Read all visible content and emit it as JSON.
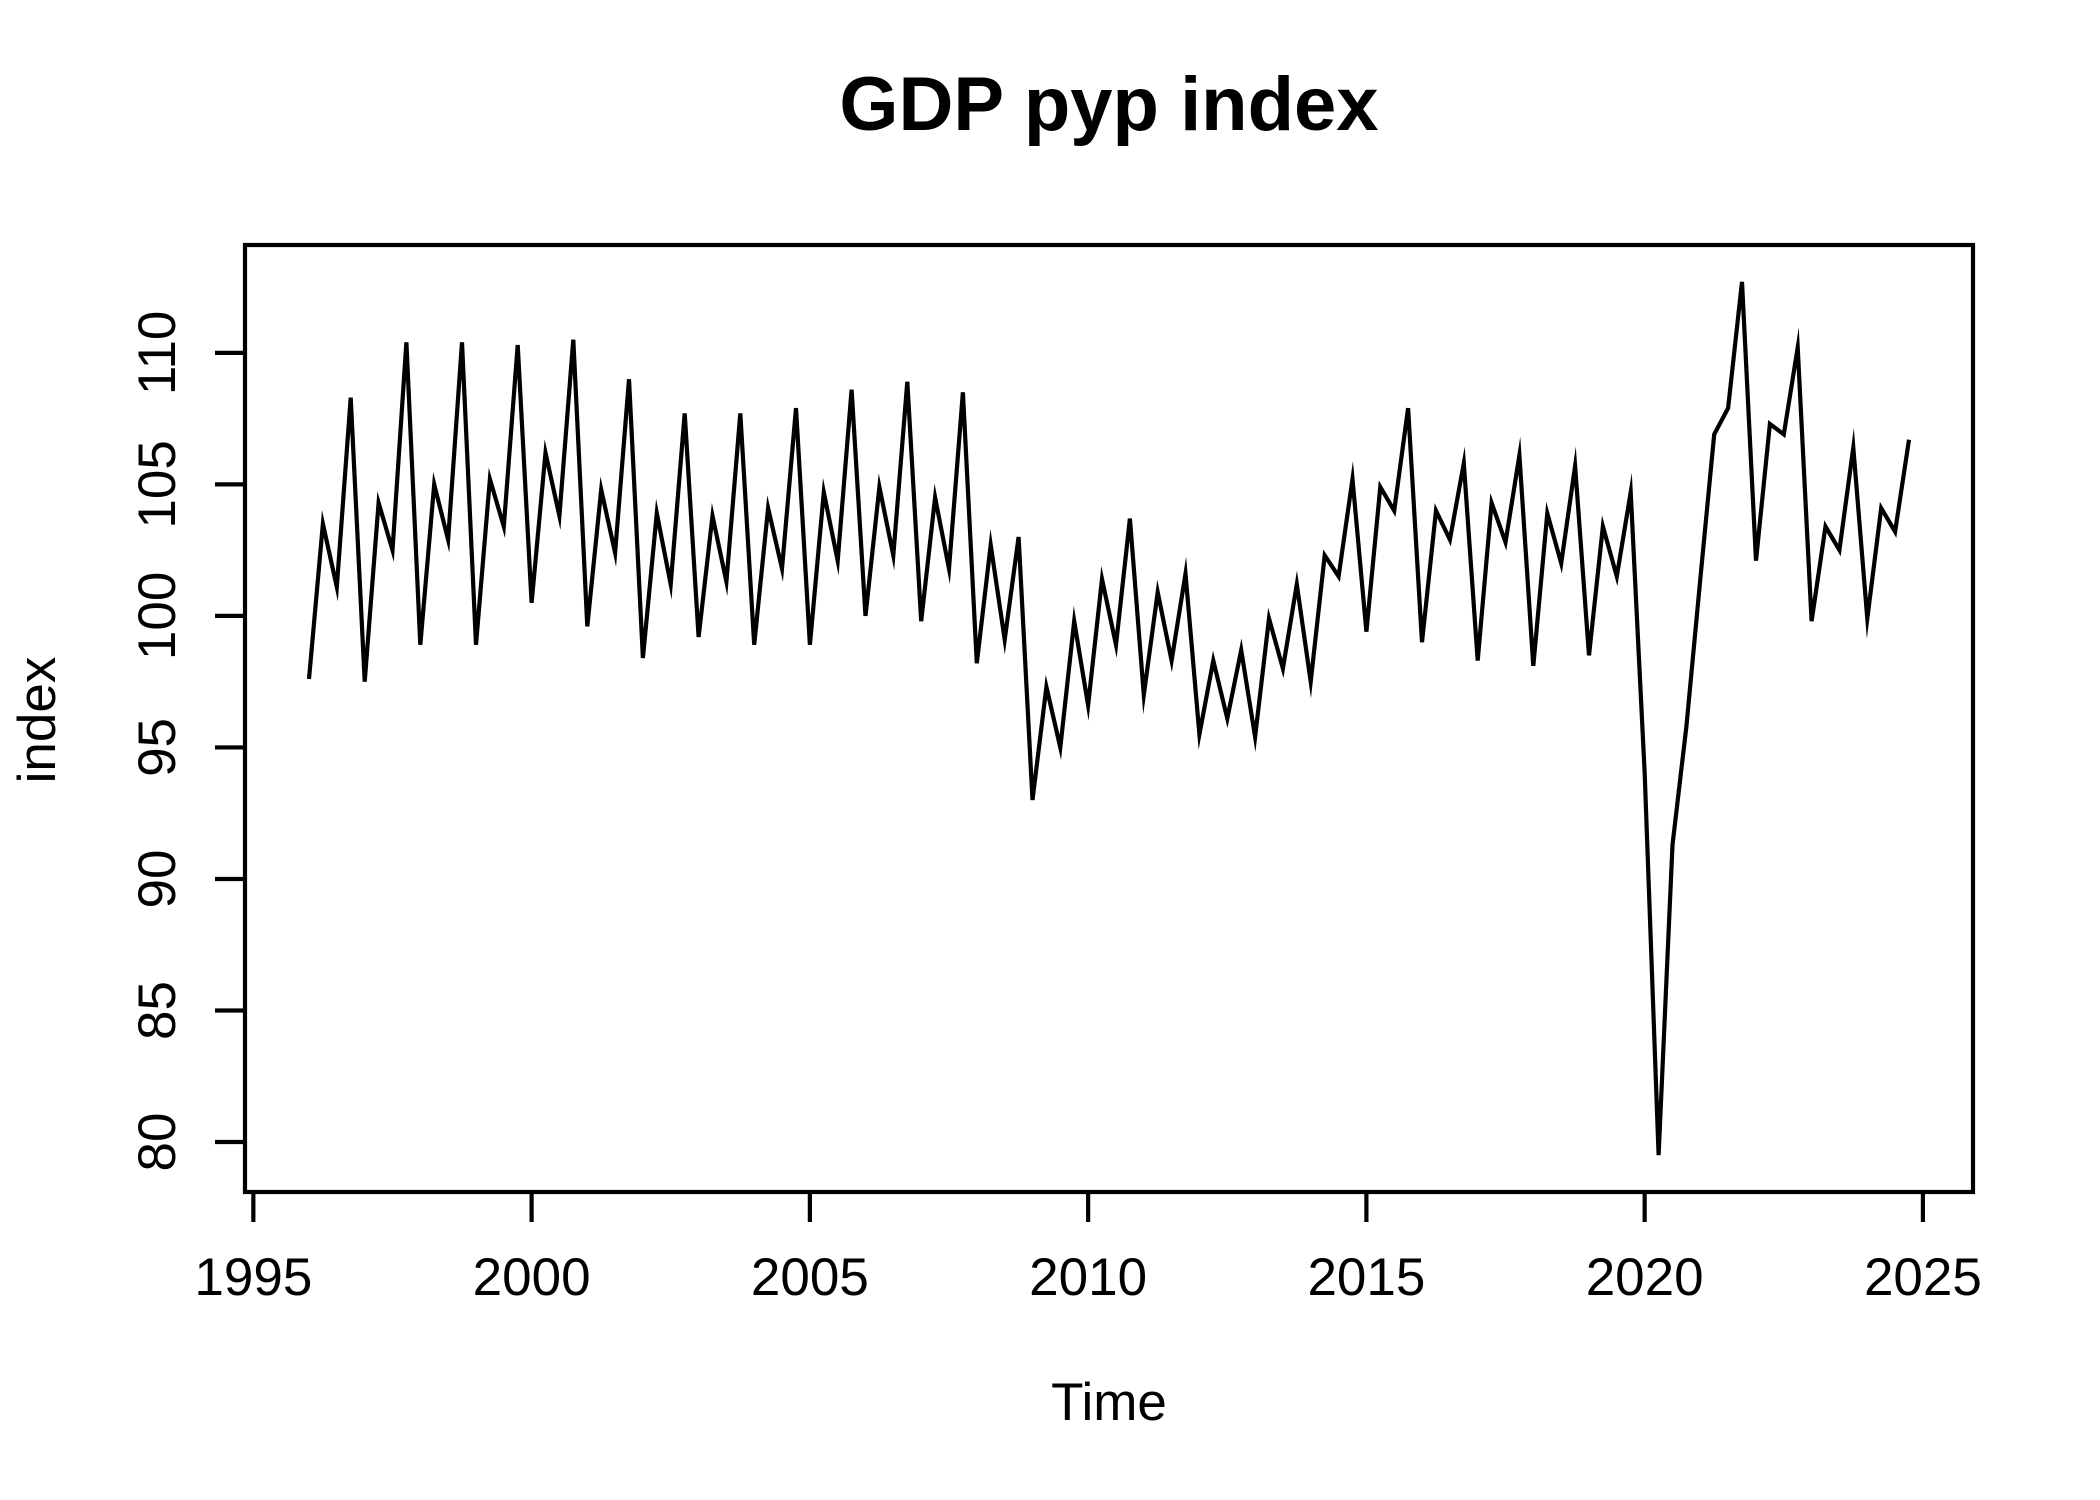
{
  "page": {
    "background_color": "#ffffff",
    "foreground_color": "#000000"
  },
  "chart_data": {
    "type": "line",
    "title": "GDP pyp index",
    "xlabel": "Time",
    "ylabel": "index",
    "legend": "none",
    "grid": false,
    "line_color": "#000000",
    "background_color": "#ffffff",
    "frequency": "quarterly",
    "x_start": 1996.0,
    "x_step": 0.25,
    "x_ticks": [
      1995,
      2000,
      2005,
      2010,
      2015,
      2020,
      2025
    ],
    "y_ticks": [
      80,
      85,
      90,
      95,
      100,
      105,
      110
    ],
    "xlim": [
      1994.85,
      2025.9
    ],
    "ylim": [
      78.1,
      114.1
    ],
    "values": [
      97.6,
      103.5,
      101.1,
      108.3,
      97.5,
      104.3,
      102.5,
      110.4,
      98.9,
      105.0,
      102.9,
      110.4,
      98.9,
      105.2,
      103.4,
      110.3,
      100.5,
      106.2,
      103.8,
      110.5,
      99.6,
      104.8,
      102.4,
      109.0,
      98.4,
      103.9,
      101.2,
      107.7,
      99.2,
      103.8,
      101.3,
      107.7,
      98.9,
      104.1,
      101.8,
      107.9,
      98.9,
      104.7,
      102.1,
      108.6,
      100.0,
      104.9,
      102.3,
      108.9,
      99.8,
      104.5,
      101.8,
      108.5,
      98.2,
      102.7,
      99.1,
      103.0,
      93.0,
      97.3,
      95.0,
      99.8,
      96.6,
      101.4,
      98.9,
      103.7,
      97.0,
      100.9,
      98.3,
      101.6,
      95.5,
      98.3,
      96.1,
      98.7,
      95.4,
      99.9,
      98.0,
      101.2,
      97.5,
      102.3,
      101.5,
      105.2,
      99.4,
      104.9,
      104.0,
      107.9,
      99.0,
      104.0,
      102.9,
      105.8,
      98.3,
      104.3,
      102.8,
      106.1,
      98.1,
      103.9,
      102.0,
      105.7,
      98.5,
      103.4,
      101.5,
      104.7,
      94.0,
      79.5,
      91.3,
      95.8,
      101.4,
      106.9,
      107.9,
      112.7,
      102.1,
      107.3,
      106.9,
      110.2,
      99.8,
      103.4,
      102.5,
      106.4,
      99.9,
      104.1,
      103.2,
      106.7
    ]
  }
}
